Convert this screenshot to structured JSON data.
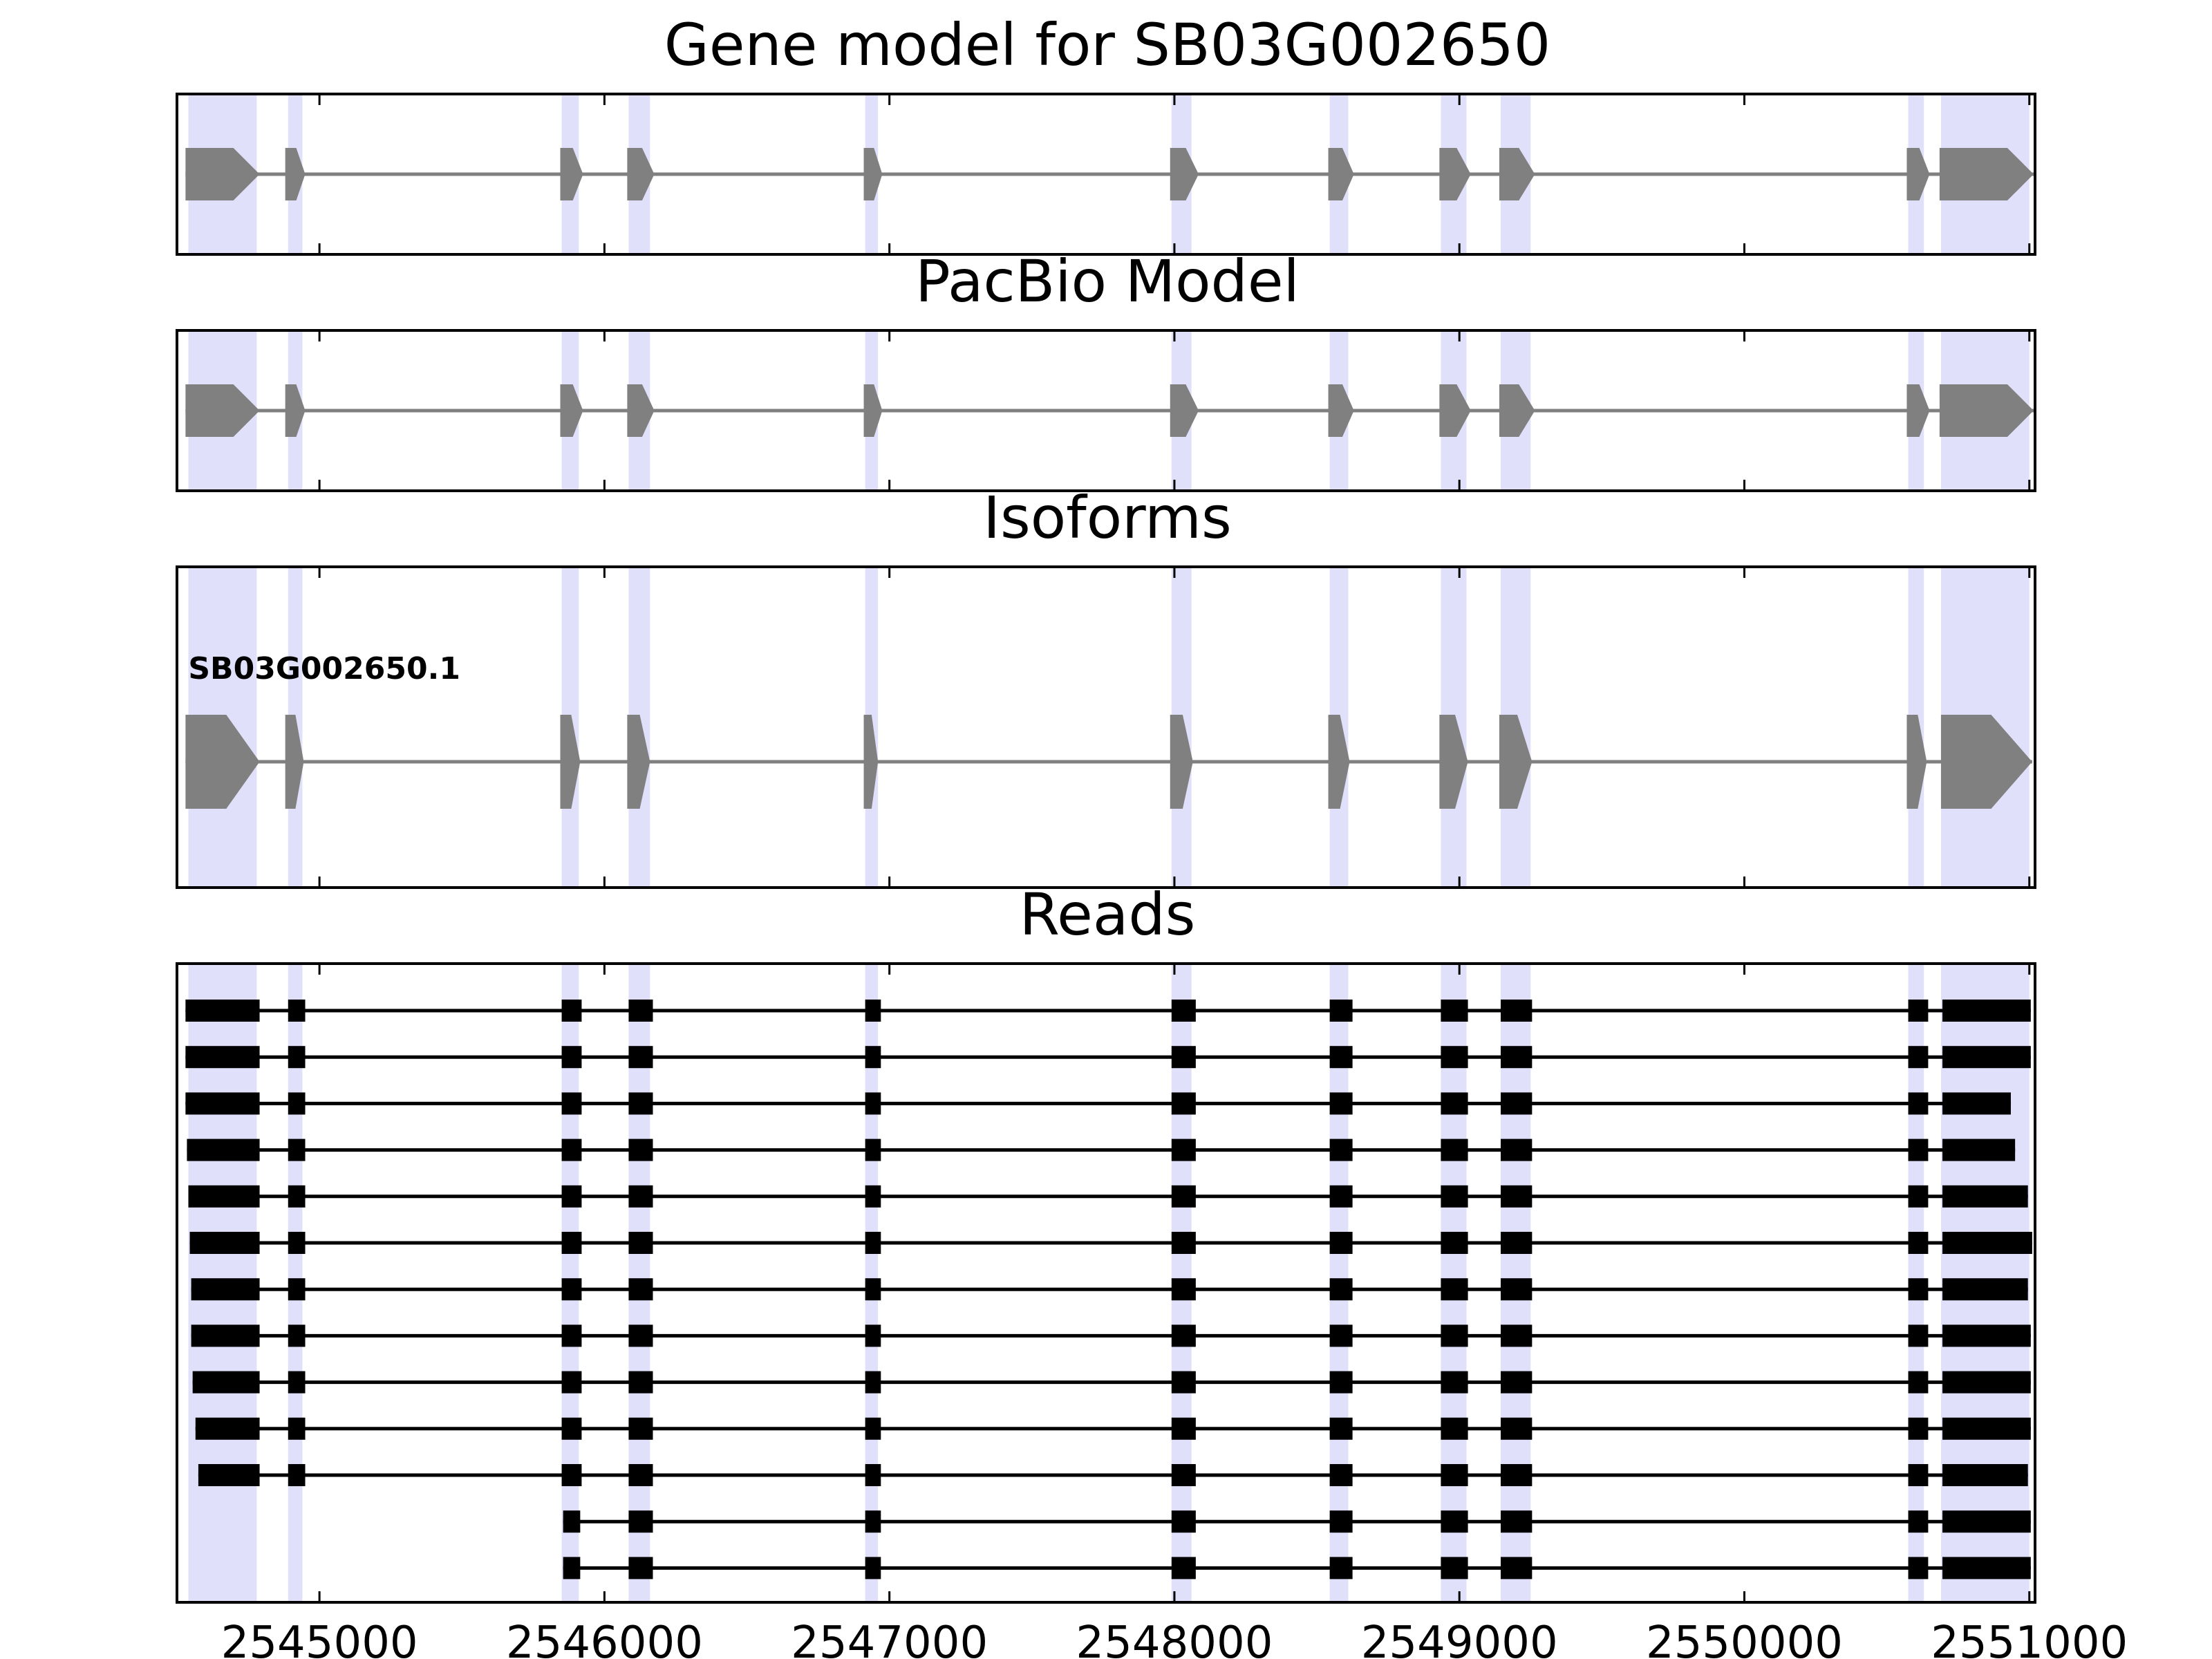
{
  "panels": [
    {
      "id": "gene",
      "title": "Gene model for SB03G002650"
    },
    {
      "id": "pacbio",
      "title": "PacBio Model"
    },
    {
      "id": "isoforms",
      "title": "Isoforms"
    },
    {
      "id": "reads",
      "title": "Reads"
    }
  ],
  "x_axis": {
    "min": 2544500,
    "max": 2551020,
    "ticks": [
      2545000,
      2546000,
      2547000,
      2548000,
      2549000,
      2550000,
      2551000
    ],
    "tick_labels": [
      "2545000",
      "2546000",
      "2547000",
      "2548000",
      "2549000",
      "2550000",
      "2551000"
    ]
  },
  "colors": {
    "highlight": "#e0e0fb",
    "model": "#808080",
    "read": "#000000",
    "frame": "#000000"
  },
  "strand": "+",
  "exon_highlights": [
    [
      2544540,
      2544780
    ],
    [
      2544890,
      2544940
    ],
    [
      2545850,
      2545910
    ],
    [
      2546085,
      2546160
    ],
    [
      2546915,
      2546960
    ],
    [
      2547990,
      2548060
    ],
    [
      2548545,
      2548610
    ],
    [
      2548935,
      2549025
    ],
    [
      2549145,
      2549250
    ],
    [
      2550575,
      2550630
    ],
    [
      2550690,
      2551000
    ]
  ],
  "gene_model": {
    "exons": [
      [
        2544530,
        2544790
      ],
      [
        2544880,
        2544950
      ],
      [
        2545845,
        2545925
      ],
      [
        2546080,
        2546175
      ],
      [
        2546910,
        2546975
      ],
      [
        2547985,
        2548085
      ],
      [
        2548540,
        2548630
      ],
      [
        2548930,
        2549040
      ],
      [
        2549140,
        2549265
      ],
      [
        2550570,
        2550650
      ],
      [
        2550685,
        2551015
      ]
    ]
  },
  "pacbio_model": {
    "exons": [
      [
        2544530,
        2544790
      ],
      [
        2544880,
        2544950
      ],
      [
        2545845,
        2545925
      ],
      [
        2546080,
        2546175
      ],
      [
        2546910,
        2546975
      ],
      [
        2547985,
        2548085
      ],
      [
        2548540,
        2548630
      ],
      [
        2548930,
        2549040
      ],
      [
        2549140,
        2549265
      ],
      [
        2550570,
        2550650
      ],
      [
        2550685,
        2551015
      ]
    ]
  },
  "isoforms": [
    {
      "label": "SB03G002650.1",
      "exons": [
        [
          2544530,
          2544790
        ],
        [
          2544880,
          2544945
        ],
        [
          2545845,
          2545915
        ],
        [
          2546080,
          2546160
        ],
        [
          2546910,
          2546960
        ],
        [
          2547985,
          2548065
        ],
        [
          2548540,
          2548615
        ],
        [
          2548930,
          2549030
        ],
        [
          2549140,
          2549255
        ],
        [
          2550570,
          2550640
        ],
        [
          2550690,
          2551010
        ]
      ]
    }
  ],
  "reads": [
    {
      "exons": [
        [
          2544530,
          2544790
        ],
        [
          2544890,
          2544950
        ],
        [
          2545850,
          2545920
        ],
        [
          2546085,
          2546170
        ],
        [
          2546915,
          2546970
        ],
        [
          2547990,
          2548075
        ],
        [
          2548545,
          2548625
        ],
        [
          2548935,
          2549030
        ],
        [
          2549145,
          2549255
        ],
        [
          2550575,
          2550645
        ],
        [
          2550695,
          2551005
        ]
      ]
    },
    {
      "exons": [
        [
          2544530,
          2544790
        ],
        [
          2544890,
          2544950
        ],
        [
          2545850,
          2545920
        ],
        [
          2546085,
          2546170
        ],
        [
          2546915,
          2546970
        ],
        [
          2547990,
          2548075
        ],
        [
          2548545,
          2548625
        ],
        [
          2548935,
          2549030
        ],
        [
          2549145,
          2549255
        ],
        [
          2550575,
          2550645
        ],
        [
          2550695,
          2551005
        ]
      ]
    },
    {
      "exons": [
        [
          2544530,
          2544790
        ],
        [
          2544890,
          2544950
        ],
        [
          2545850,
          2545920
        ],
        [
          2546085,
          2546170
        ],
        [
          2546915,
          2546970
        ],
        [
          2547990,
          2548075
        ],
        [
          2548545,
          2548625
        ],
        [
          2548935,
          2549030
        ],
        [
          2549145,
          2549255
        ],
        [
          2550575,
          2550645
        ],
        [
          2550695,
          2550935
        ]
      ]
    },
    {
      "exons": [
        [
          2544535,
          2544790
        ],
        [
          2544890,
          2544950
        ],
        [
          2545850,
          2545920
        ],
        [
          2546085,
          2546170
        ],
        [
          2546915,
          2546970
        ],
        [
          2547990,
          2548075
        ],
        [
          2548545,
          2548625
        ],
        [
          2548935,
          2549030
        ],
        [
          2549145,
          2549255
        ],
        [
          2550575,
          2550645
        ],
        [
          2550695,
          2550950
        ]
      ]
    },
    {
      "exons": [
        [
          2544540,
          2544790
        ],
        [
          2544890,
          2544950
        ],
        [
          2545850,
          2545920
        ],
        [
          2546085,
          2546170
        ],
        [
          2546915,
          2546970
        ],
        [
          2547990,
          2548075
        ],
        [
          2548545,
          2548625
        ],
        [
          2548935,
          2549030
        ],
        [
          2549145,
          2549255
        ],
        [
          2550575,
          2550645
        ],
        [
          2550695,
          2550995
        ]
      ]
    },
    {
      "exons": [
        [
          2544545,
          2544790
        ],
        [
          2544890,
          2544950
        ],
        [
          2545850,
          2545920
        ],
        [
          2546085,
          2546170
        ],
        [
          2546915,
          2546970
        ],
        [
          2547990,
          2548075
        ],
        [
          2548545,
          2548625
        ],
        [
          2548935,
          2549030
        ],
        [
          2549145,
          2549255
        ],
        [
          2550575,
          2550645
        ],
        [
          2550695,
          2551010
        ]
      ]
    },
    {
      "exons": [
        [
          2544550,
          2544790
        ],
        [
          2544890,
          2544950
        ],
        [
          2545850,
          2545920
        ],
        [
          2546085,
          2546170
        ],
        [
          2546915,
          2546970
        ],
        [
          2547990,
          2548075
        ],
        [
          2548545,
          2548625
        ],
        [
          2548935,
          2549030
        ],
        [
          2549145,
          2549255
        ],
        [
          2550575,
          2550645
        ],
        [
          2550695,
          2550995
        ]
      ]
    },
    {
      "exons": [
        [
          2544550,
          2544790
        ],
        [
          2544890,
          2544950
        ],
        [
          2545850,
          2545920
        ],
        [
          2546085,
          2546170
        ],
        [
          2546915,
          2546970
        ],
        [
          2547990,
          2548075
        ],
        [
          2548545,
          2548625
        ],
        [
          2548935,
          2549030
        ],
        [
          2549145,
          2549255
        ],
        [
          2550575,
          2550645
        ],
        [
          2550695,
          2551005
        ]
      ]
    },
    {
      "exons": [
        [
          2544555,
          2544790
        ],
        [
          2544890,
          2544950
        ],
        [
          2545850,
          2545920
        ],
        [
          2546085,
          2546170
        ],
        [
          2546915,
          2546970
        ],
        [
          2547990,
          2548075
        ],
        [
          2548545,
          2548625
        ],
        [
          2548935,
          2549030
        ],
        [
          2549145,
          2549255
        ],
        [
          2550575,
          2550645
        ],
        [
          2550695,
          2551005
        ]
      ]
    },
    {
      "exons": [
        [
          2544565,
          2544790
        ],
        [
          2544890,
          2544950
        ],
        [
          2545850,
          2545920
        ],
        [
          2546085,
          2546170
        ],
        [
          2546915,
          2546970
        ],
        [
          2547990,
          2548075
        ],
        [
          2548545,
          2548625
        ],
        [
          2548935,
          2549030
        ],
        [
          2549145,
          2549255
        ],
        [
          2550575,
          2550645
        ],
        [
          2550695,
          2551005
        ]
      ]
    },
    {
      "exons": [
        [
          2544575,
          2544790
        ],
        [
          2544890,
          2544950
        ],
        [
          2545850,
          2545920
        ],
        [
          2546085,
          2546170
        ],
        [
          2546915,
          2546970
        ],
        [
          2547990,
          2548075
        ],
        [
          2548545,
          2548625
        ],
        [
          2548935,
          2549030
        ],
        [
          2549145,
          2549255
        ],
        [
          2550575,
          2550645
        ],
        [
          2550695,
          2550995
        ]
      ]
    },
    {
      "exons": [
        [
          2545855,
          2545915
        ],
        [
          2546085,
          2546170
        ],
        [
          2546915,
          2546970
        ],
        [
          2547990,
          2548075
        ],
        [
          2548545,
          2548625
        ],
        [
          2548935,
          2549030
        ],
        [
          2549145,
          2549255
        ],
        [
          2550575,
          2550645
        ],
        [
          2550695,
          2551005
        ]
      ]
    },
    {
      "exons": [
        [
          2545855,
          2545915
        ],
        [
          2546085,
          2546170
        ],
        [
          2546915,
          2546970
        ],
        [
          2547990,
          2548075
        ],
        [
          2548545,
          2548625
        ],
        [
          2548935,
          2549030
        ],
        [
          2549145,
          2549255
        ],
        [
          2550575,
          2550645
        ],
        [
          2550695,
          2551005
        ]
      ]
    }
  ]
}
